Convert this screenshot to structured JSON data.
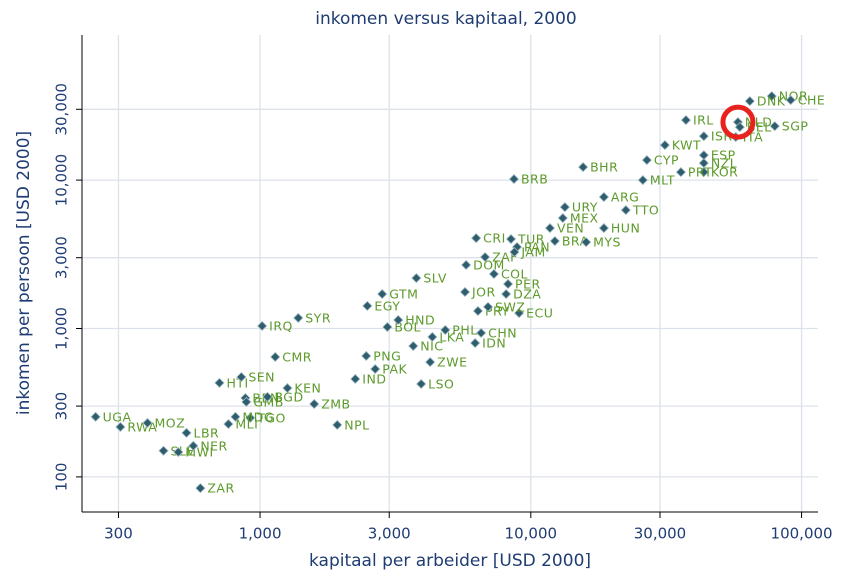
{
  "chart_data": {
    "type": "scatter",
    "title": "inkomen versus kapitaal, 2000",
    "x_label": "kapitaal per arbeider [USD 2000]",
    "y_label": "inkomen per persoon [USD 2000]",
    "log_x": true,
    "log_y": true,
    "grid": true,
    "xlim": [
      220,
      115000
    ],
    "ylim": [
      58,
      95000
    ],
    "xticks": [
      300,
      {
        "value": 1000,
        "label": "1,000"
      },
      {
        "value": 3000,
        "label": "3,000"
      },
      {
        "value": 10000,
        "label": "10,000"
      },
      {
        "value": 30000,
        "label": "30,000"
      },
      {
        "value": 100000,
        "label": "100,000"
      }
    ],
    "yticks": [
      100,
      300,
      {
        "value": 1000,
        "label": "1,000"
      },
      {
        "value": 3000,
        "label": "3,000"
      },
      {
        "value": 10000,
        "label": "10,000"
      },
      {
        "value": 30000,
        "label": "30,000"
      }
    ],
    "color": "#2e5d6b",
    "label_color": "#5c9a2a",
    "highlight": "NLD",
    "highlight_color": "#e8231d",
    "point_labels": [
      "UGA",
      "RWA",
      "MOZ",
      "LBR",
      "SLE",
      "MWI",
      "NER",
      "ZAR",
      "HTI",
      "SEN",
      "BEN",
      "GMB",
      "TGO",
      "MLI",
      "MDG",
      "KEN",
      "BGD",
      "ZMB",
      "CMR",
      "IRQ",
      "SYR",
      "NPL",
      "IND",
      "PNG",
      "PAK",
      "LSO",
      "ZWE",
      "NIC",
      "LKA",
      "PHL",
      "IDN",
      "CHN",
      "BOL",
      "HND",
      "GTM",
      "EGY",
      "SLV",
      "JOR",
      "DZA",
      "ECU",
      "PRY",
      "SWZ",
      "PER",
      "COL",
      "DOM",
      "ZAF",
      "CRI",
      "TUR",
      "PAN",
      "JAM",
      "BRA",
      "URY",
      "MEX",
      "VEN",
      "ARG",
      "TTO",
      "MYS",
      "HUN",
      "BRB",
      "BHR",
      "MLT",
      "CYP",
      "KWT",
      "KOR",
      "PRT",
      "ESP",
      "NZL",
      "ISR",
      "ITA",
      "IRL",
      "NOR",
      "CHE",
      "DNK",
      "NLD",
      "SGP",
      "BEL"
    ],
    "x": [
      247,
      305,
      384,
      535,
      440,
      499,
      567,
      602,
      708,
      853,
      883,
      890,
      920,
      764,
      811,
      1262,
      1065,
      1585,
      1138,
      1018,
      1384,
      1928,
      2248,
      2467,
      2663,
      3936,
      4249,
      3680,
      4328,
      4833,
      6228,
      6554,
      2953,
      3239,
      2826,
      2490,
      3778,
      5715,
      8106,
      9051,
      6380,
      6950,
      8240,
      7310,
      5768,
      6778,
      6283,
      8450,
      8893,
      8700,
      12270,
      13360,
      13130,
      11770,
      18620,
      22440,
      16010,
      18620,
      8667,
      15600,
      25930,
      26840,
      31280,
      43550,
      35840,
      43550,
      43550,
      43550,
      57150,
      37410,
      77620,
      91200,
      64400,
      58210,
      79620,
      59150
    ],
    "values": [
      254,
      217,
      231,
      198,
      150,
      147,
      162,
      84,
      430,
      471,
      340,
      320,
      250,
      227,
      254,
      397,
      346,
      310,
      643,
      1040,
      1178,
      224,
      457,
      653,
      533,
      423,
      594,
      762,
      877,
      977,
      798,
      933,
      1023,
      1141,
      1707,
      1420,
      2188,
      1762,
      1707,
      1270,
      1312,
      1398,
      1995,
      2330,
      2680,
      3030,
      4064,
      4007,
      3540,
      3274,
      3883,
      6577,
      5550,
      4750,
      7690,
      6281,
      3819,
      4750,
      10160,
      12240,
      10000,
      13640,
      17220,
      11320,
      11320,
      14720,
      13020,
      19770,
      19500,
      25370,
      36800,
      34600,
      34060,
      24600,
      23100,
      22760
    ]
  }
}
